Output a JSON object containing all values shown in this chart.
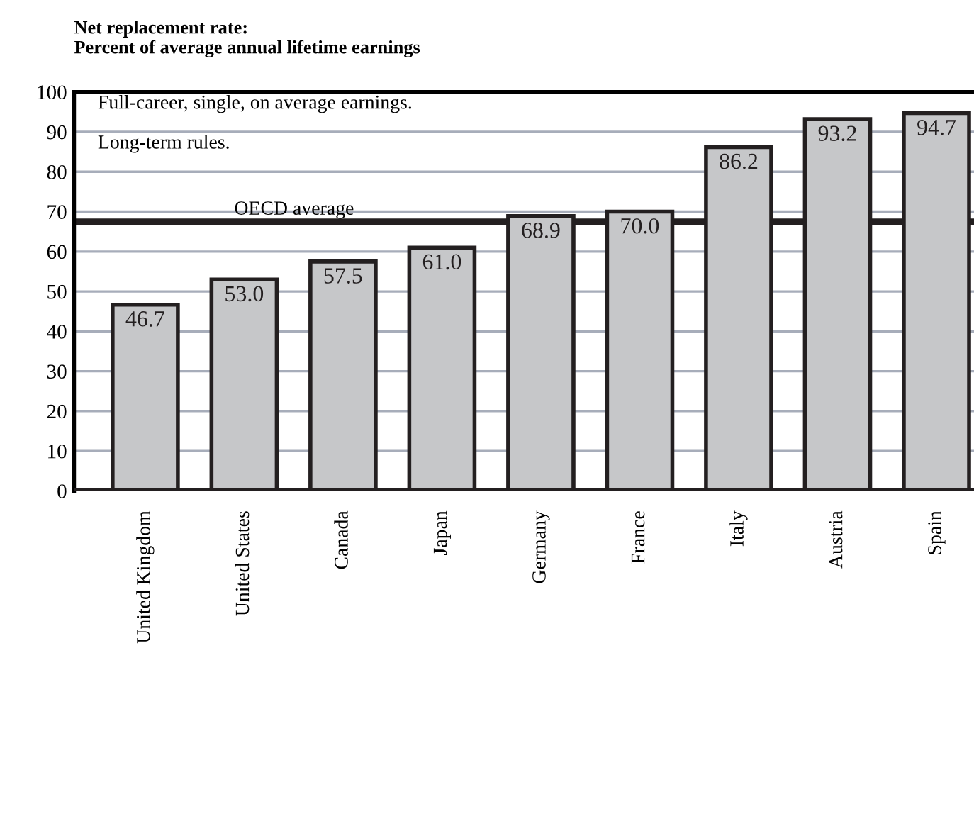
{
  "chart_data": {
    "type": "bar",
    "title": "Net replacement rate:\nPercent of average annual lifetime earnings",
    "categories": [
      "United Kingdom",
      "United States",
      "Canada",
      "Japan",
      "Germany",
      "France",
      "Italy",
      "Austria",
      "Spain"
    ],
    "values": [
      46.7,
      53.0,
      57.5,
      61.0,
      68.9,
      70.0,
      86.2,
      93.2,
      94.7
    ],
    "value_labels": [
      "46.7",
      "53.0",
      "57.5",
      "61.0",
      "68.9",
      "70.0",
      "86.2",
      "93.2",
      "94.7"
    ],
    "color": "#c6c7c9",
    "ylim": [
      0,
      100
    ],
    "yticks": [
      0,
      10,
      20,
      30,
      40,
      50,
      60,
      70,
      80,
      90,
      100
    ],
    "grid": "y",
    "ref_lines": [
      {
        "axis": "y",
        "value": 67.4,
        "label": "OECD average",
        "color": "#231f20"
      }
    ],
    "annotations": [
      "Full-career, single, on average earnings.",
      "Long-term rules."
    ]
  }
}
